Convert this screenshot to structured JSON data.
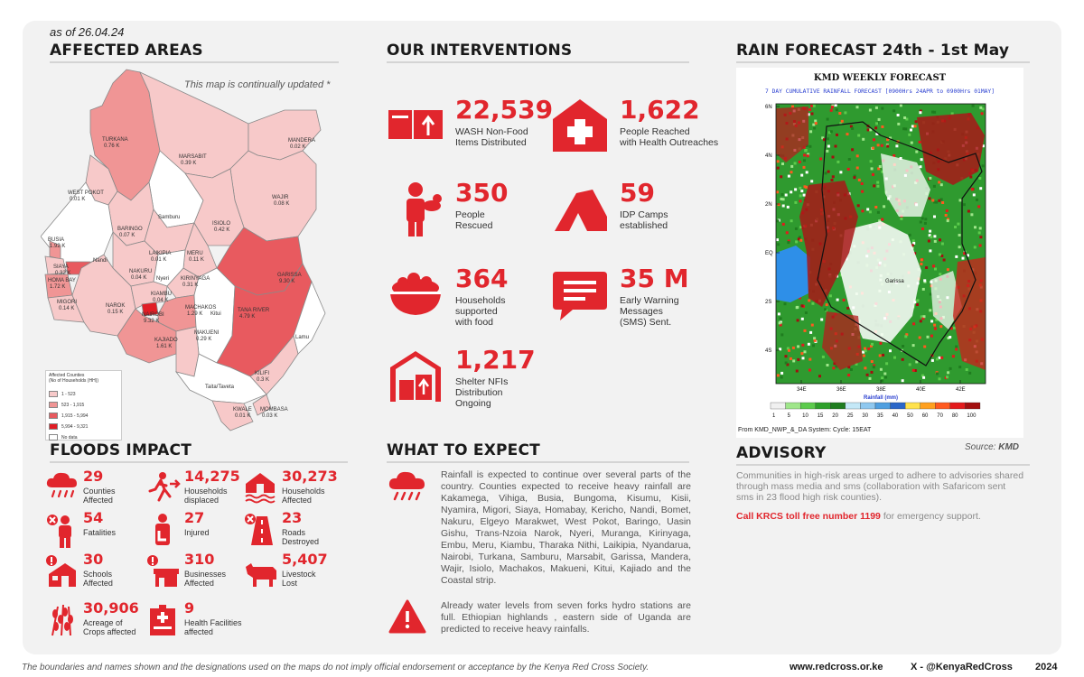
{
  "as_of": "as of 26.04.24",
  "affected": {
    "title": "AFFECTED AREAS",
    "map_note": "This map is continually updated *",
    "counties": [
      {
        "name": "TURKANA",
        "value": "0.76 K"
      },
      {
        "name": "MARSABIT",
        "value": "0.39 K"
      },
      {
        "name": "MANDERA",
        "value": "0.02 K"
      },
      {
        "name": "WEST POKOT",
        "value": "0.01 K"
      },
      {
        "name": "WAJIR",
        "value": "0.08 K"
      },
      {
        "name": "Samburu",
        "value": ""
      },
      {
        "name": "ISIOLO",
        "value": "0.42 K"
      },
      {
        "name": "BARINGO",
        "value": "0.07 K"
      },
      {
        "name": "BUSIA",
        "value": "1.92 K"
      },
      {
        "name": "LAIKIPIA",
        "value": "0.01 K"
      },
      {
        "name": "MERU",
        "value": "0.11 K"
      },
      {
        "name": "SIAYA",
        "value": "0.32 K"
      },
      {
        "name": "Nandi",
        "value": ""
      },
      {
        "name": "GARISSA",
        "value": "9.30 K"
      },
      {
        "name": "HOMA BAY",
        "value": "1.72 K"
      },
      {
        "name": "NAKURU",
        "value": "0.04 K"
      },
      {
        "name": "Nyeri",
        "value": ""
      },
      {
        "name": "KIRINYAGA",
        "value": "0.31 K"
      },
      {
        "name": "MIGORI",
        "value": "0.14 K"
      },
      {
        "name": "KIAMBU",
        "value": "0.04 K"
      },
      {
        "name": "NAROK",
        "value": "0.15 K"
      },
      {
        "name": "NAIROBI",
        "value": "9.32 K"
      },
      {
        "name": "MACHAKOS",
        "value": "1.29 K"
      },
      {
        "name": "Kitui",
        "value": ""
      },
      {
        "name": "TANA RIVER",
        "value": "4.79 K"
      },
      {
        "name": "KAJIADO",
        "value": "1.61 K"
      },
      {
        "name": "MAKUENI",
        "value": "0.29 K"
      },
      {
        "name": "Lamu",
        "value": ""
      },
      {
        "name": "KILIFI",
        "value": "0.3 K"
      },
      {
        "name": "Taita/Taveta",
        "value": ""
      },
      {
        "name": "KWALE",
        "value": "0.01 K"
      },
      {
        "name": "MOMBASA",
        "value": "0.03 K"
      }
    ],
    "legend": {
      "title": "Affected Counties",
      "subtitle": "(No of Households (HH))",
      "items": [
        {
          "label": "1 - 523",
          "color": "#f7c9c9"
        },
        {
          "label": "523 - 1,915",
          "color": "#f09595"
        },
        {
          "label": "1,915 - 5,994",
          "color": "#e85a5f"
        },
        {
          "label": "5,994 - 9,321",
          "color": "#e11d25"
        },
        {
          "label": "No data",
          "color": "#ffffff"
        }
      ]
    }
  },
  "interventions": {
    "title": "OUR INTERVENTIONS",
    "items": [
      {
        "icon": "wash-boxes-icon",
        "value": "22,539",
        "label": [
          "WASH Non-Food",
          "Items Distributed"
        ]
      },
      {
        "icon": "health-house-icon",
        "value": "1,622",
        "label": [
          "People Reached",
          "with Health Outreaches"
        ]
      },
      {
        "icon": "rescuer-icon",
        "value": "350",
        "label": [
          "People",
          "Rescued"
        ]
      },
      {
        "icon": "tent-icon",
        "value": "59",
        "label": [
          "IDP Camps",
          "established"
        ]
      },
      {
        "icon": "food-bowl-icon",
        "value": "364",
        "label": [
          "Households",
          "supported",
          "with food"
        ]
      },
      {
        "icon": "sms-message-icon",
        "value": "35 M",
        "label": [
          "Early Warning",
          "Messages",
          "(SMS) Sent."
        ]
      },
      {
        "icon": "warehouse-icon",
        "value": "1,217",
        "label": [
          "Shelter NFIs",
          "Distribution",
          "Ongoing"
        ]
      }
    ]
  },
  "rain": {
    "title": "RAIN FORECAST 24th - 1st May",
    "map_title": "KMD WEEKLY FORECAST",
    "map_subtitle": "7 DAY CUMULATIVE RAINFALL FORECAST [0900Hrs 24APR to 0900Hrs 01MAY]",
    "lat_labels": [
      "6N",
      "4N",
      "2N",
      "EQ",
      "2S",
      "4S"
    ],
    "lon_labels": [
      "34E",
      "36E",
      "38E",
      "40E",
      "42E"
    ],
    "places": [
      "Garissa"
    ],
    "scale_title": "Rainfall (mm)",
    "scale_values": [
      "1",
      "5",
      "10",
      "15",
      "20",
      "25",
      "30",
      "35",
      "40",
      "50",
      "60",
      "70",
      "80",
      "100"
    ],
    "scale_colors": [
      "#f0f0f0",
      "#9fe68a",
      "#5ccb4c",
      "#2ea02a",
      "#1f7d1f",
      "#c4e8f7",
      "#8fc8ef",
      "#4f9fe0",
      "#2a66c8",
      "#ffe24d",
      "#ffa01f",
      "#ff5a1f",
      "#e31a1c",
      "#a30f0f"
    ],
    "source_line": "From KMD_NWP_&_DA System: Cycle: 15EAT",
    "source_label": "Source:",
    "source_value": "KMD"
  },
  "floods": {
    "title": "FLOODS IMPACT",
    "items": [
      {
        "icon": "rain-cloud-icon",
        "value": "29",
        "label": [
          "Counties",
          "Affected"
        ]
      },
      {
        "icon": "person-running-icon",
        "value": "14,275",
        "label": [
          "Households",
          "displaced"
        ]
      },
      {
        "icon": "flooded-house-icon",
        "value": "30,273",
        "label": [
          "Households",
          "Affected"
        ]
      },
      {
        "icon": "fatality-person-icon",
        "value": "54",
        "label": [
          "Fatalities"
        ]
      },
      {
        "icon": "injured-person-icon",
        "value": "27",
        "label": [
          "Injured"
        ]
      },
      {
        "icon": "road-destroyed-icon",
        "value": "23",
        "label": [
          "Roads",
          "Destroyed"
        ]
      },
      {
        "icon": "school-icon",
        "value": "30",
        "label": [
          "Schools",
          "Affected"
        ]
      },
      {
        "icon": "business-icon",
        "value": "310",
        "label": [
          "Businesses",
          "Affected"
        ]
      },
      {
        "icon": "livestock-icon",
        "value": "5,407",
        "label": [
          "Livestock",
          "Lost"
        ]
      },
      {
        "icon": "crops-icon",
        "value": "30,906",
        "label": [
          "Acreage of",
          "Crops affected"
        ]
      },
      {
        "icon": "health-facility-icon",
        "value": "9",
        "label": [
          "Health Facilities",
          "affected"
        ]
      }
    ]
  },
  "expect": {
    "title": "WHAT TO EXPECT",
    "para1": "Rainfall is expected to continue over several parts of the country. Counties expected to receive heavy rainfall are Kakamega, Vihiga, Busia, Bungoma, Kisumu, Kisii, Nyamira, Migori, Siaya, Homabay, Kericho, Nandi, Bomet, Nakuru, Elgeyo Marakwet, West Pokot, Baringo, Uasin Gishu, Trans-Nzoia Narok, Nyeri, Muranga, Kirinyaga, Embu, Meru, Kiambu, Tharaka Nithi, Laikipia, Nyandarua, Nairobi, Turkana, Samburu, Marsabit, Garissa, Mandera, Wajir, Isiolo, Machakos, Makueni, Kitui, Kajiado and the Coastal strip.",
    "para2": "Already water levels from seven forks hydro stations are full. Ethiopian highlands , eastern side of Uganda are predicted to receive heavy rainfalls."
  },
  "advisory": {
    "title": "ADVISORY",
    "text": "Communities in high-risk areas urged to adhere to advisories shared through mass media and sms (collaboration with Safaricom sent sms in 23 flood high risk counties).",
    "call_red": "Call KRCS toll free number 1199",
    "call_rest": "for emergency support."
  },
  "footer": {
    "disclaimer": "The boundaries and names shown and the designations used on the maps do not imply official endorsement or acceptance by the Kenya Red Cross Society.",
    "website": "www.redcross.or.ke",
    "twitter": "X - @KenyaRedCross",
    "year": "2024"
  },
  "colors": {
    "accent": "#e1262d",
    "card": "#f2f2f2"
  }
}
